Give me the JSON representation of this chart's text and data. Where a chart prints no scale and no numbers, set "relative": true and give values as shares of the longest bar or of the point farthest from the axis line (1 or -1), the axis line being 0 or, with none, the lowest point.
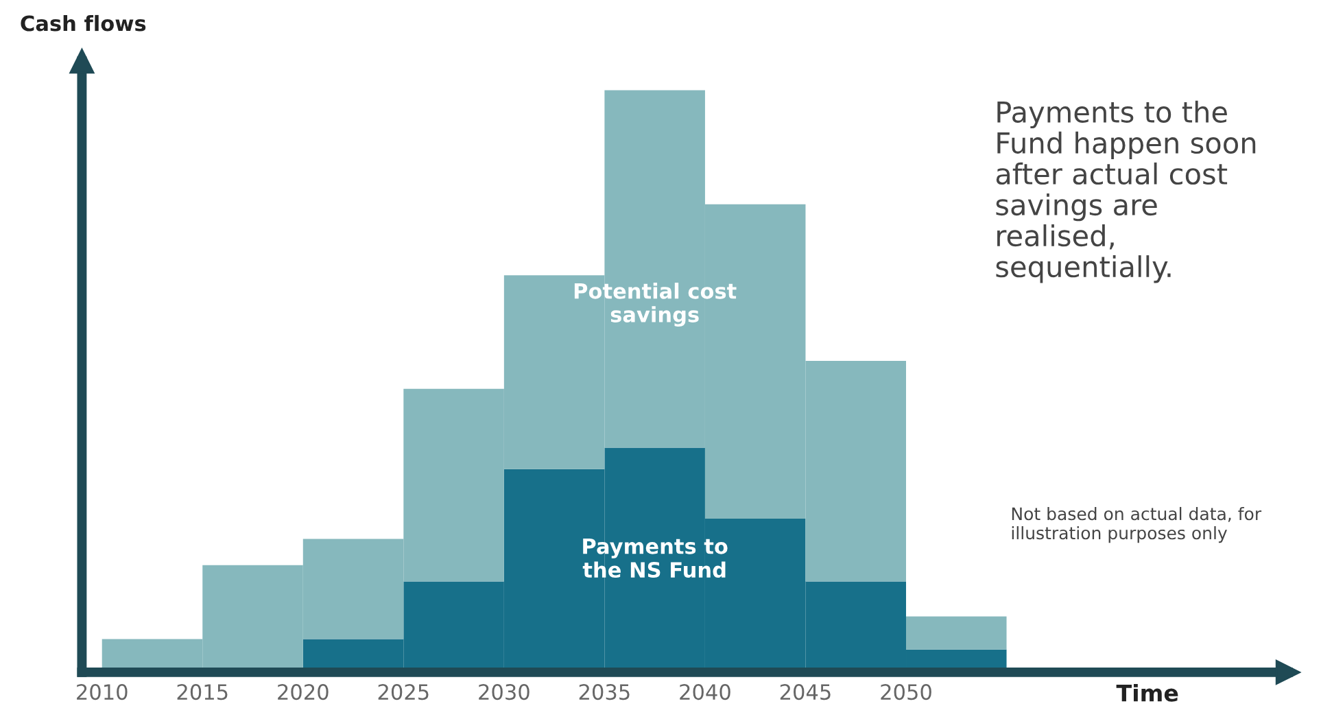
{
  "chart_data": {
    "type": "bar",
    "stacked": true,
    "relative": true,
    "x": [
      2012.5,
      2017.5,
      2022.5,
      2027.5,
      2032.5,
      2037.5,
      2042.5,
      2047.5,
      2052.5
    ],
    "xlim": [
      2009,
      2069
    ],
    "xticks": [
      2010,
      2015,
      2020,
      2025,
      2030,
      2035,
      2040,
      2045,
      2050
    ],
    "ylabel": "Cash flows",
    "xlabel": "Time",
    "series": [
      {
        "name": "Payments to\nthe NS Fund",
        "color": "#17708a",
        "values": [
          0,
          0,
          0.057,
          0.156,
          0.349,
          0.386,
          0.264,
          0.156,
          0.039
        ]
      },
      {
        "name": "Potential cost\nsavings",
        "color": "#86b8bd",
        "values": [
          0.057,
          0.184,
          0.172,
          0.331,
          0.333,
          0.614,
          0.54,
          0.379,
          0.057
        ]
      }
    ],
    "annotations": [
      "Payments to the\nFund happen soon\nafter actual cost\nsavings are\nrealised,\nsequentially.",
      "Not based on actual data, for\nillustration purposes only"
    ],
    "grid": false,
    "legend": false
  }
}
